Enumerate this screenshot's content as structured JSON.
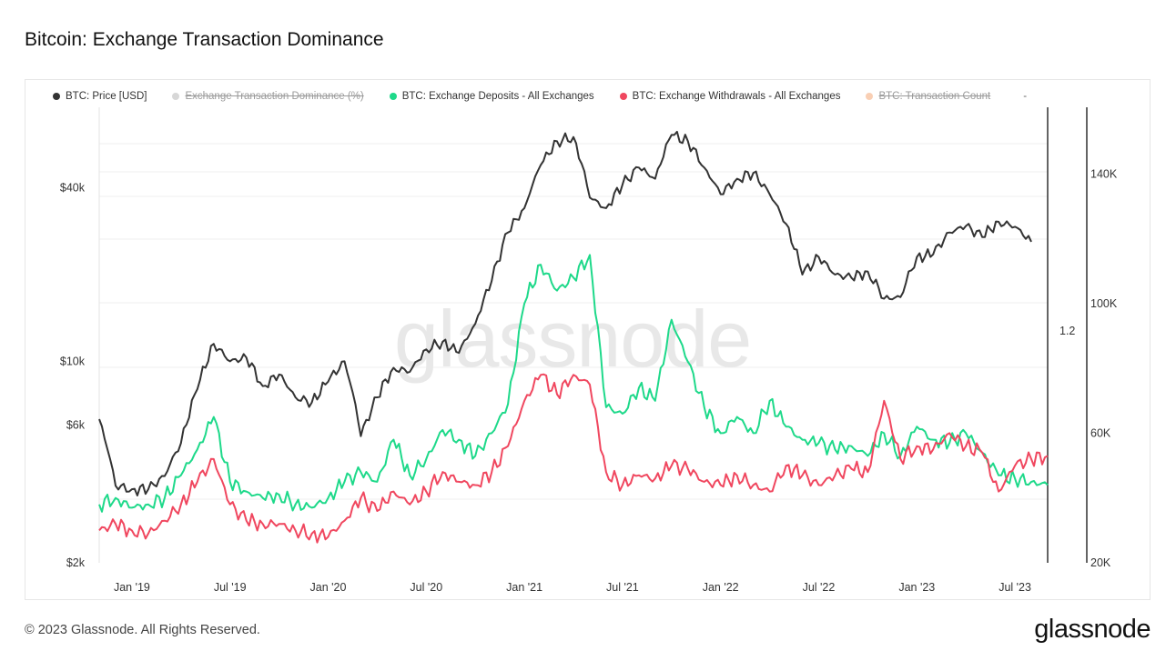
{
  "header": {
    "title": "Bitcoin: Exchange Transaction Dominance"
  },
  "legend": [
    {
      "label": "BTC: Price [USD]",
      "color": "#333333",
      "hidden": false
    },
    {
      "label": "Exchange Transaction Dominance (%)",
      "color": "#b0b0b0",
      "hidden": true
    },
    {
      "label": "BTC: Exchange Deposits - All Exchanges",
      "color": "#1ed98a",
      "hidden": false
    },
    {
      "label": "BTC: Exchange Withdrawals - All Exchanges",
      "color": "#f0475f",
      "hidden": false
    },
    {
      "label": "BTC: Transaction Count",
      "color": "#f4a06a",
      "hidden": true
    }
  ],
  "legend_more": "-",
  "watermark": "glassnode",
  "footer": {
    "copyright": "© 2023 Glassnode. All Rights Reserved.",
    "logo": "glassnode"
  },
  "chart_data": {
    "type": "line",
    "title": "Bitcoin: Exchange Transaction Dominance",
    "x_ticks": [
      "Jan '19",
      "Jul '19",
      "Jan '20",
      "Jul '20",
      "Jan '21",
      "Jul '21",
      "Jan '22",
      "Jul '22",
      "Jan '23",
      "Jul '23"
    ],
    "x_range": [
      "2018-11",
      "2023-09"
    ],
    "y_left": {
      "scale": "log",
      "ticks": [
        "$2k",
        "$6k",
        "$10k",
        "$40k"
      ],
      "range": [
        2000,
        75000
      ]
    },
    "y_right_inner": {
      "ticks": [
        "1.2"
      ]
    },
    "y_right": {
      "ticks": [
        "20K",
        "60K",
        "100K",
        "140K"
      ],
      "range": [
        20000,
        160000
      ]
    },
    "series": [
      {
        "name": "BTC: Price [USD]",
        "axis": "left",
        "color": "#333333",
        "points": [
          [
            "Nov '18",
            6300
          ],
          [
            "Dec '18",
            3700
          ],
          [
            "Jan '19",
            3600
          ],
          [
            "Feb '19",
            3600
          ],
          [
            "Mar '19",
            4000
          ],
          [
            "Apr '19",
            5200
          ],
          [
            "May '19",
            8000
          ],
          [
            "Jun '19",
            11500
          ],
          [
            "Jul '19",
            10000
          ],
          [
            "Aug '19",
            10300
          ],
          [
            "Sep '19",
            8200
          ],
          [
            "Oct '19",
            9000
          ],
          [
            "Nov '19",
            7500
          ],
          [
            "Dec '19",
            7200
          ],
          [
            "Jan '20",
            8500
          ],
          [
            "Feb '20",
            10000
          ],
          [
            "Mar '20",
            5500
          ],
          [
            "Apr '20",
            7500
          ],
          [
            "May '20",
            9500
          ],
          [
            "Jun '20",
            9200
          ],
          [
            "Jul '20",
            11000
          ],
          [
            "Aug '20",
            11700
          ],
          [
            "Sep '20",
            10700
          ],
          [
            "Oct '20",
            13500
          ],
          [
            "Nov '20",
            19000
          ],
          [
            "Dec '20",
            28000
          ],
          [
            "Jan '21",
            34000
          ],
          [
            "Feb '21",
            48000
          ],
          [
            "Mar '21",
            58000
          ],
          [
            "Apr '21",
            60000
          ],
          [
            "May '21",
            37000
          ],
          [
            "Jun '21",
            34000
          ],
          [
            "Jul '21",
            41000
          ],
          [
            "Aug '21",
            47000
          ],
          [
            "Sep '21",
            43000
          ],
          [
            "Oct '21",
            61000
          ],
          [
            "Nov '21",
            58000
          ],
          [
            "Dec '21",
            47000
          ],
          [
            "Jan '22",
            38000
          ],
          [
            "Feb '22",
            43000
          ],
          [
            "Mar '22",
            45000
          ],
          [
            "Apr '22",
            38000
          ],
          [
            "May '22",
            30000
          ],
          [
            "Jun '22",
            20000
          ],
          [
            "Jul '22",
            23000
          ],
          [
            "Aug '22",
            20000
          ],
          [
            "Sep '22",
            19500
          ],
          [
            "Oct '22",
            20500
          ],
          [
            "Nov '22",
            16500
          ],
          [
            "Dec '22",
            16700
          ],
          [
            "Jan '23",
            23000
          ],
          [
            "Feb '23",
            23500
          ],
          [
            "Mar '23",
            28000
          ],
          [
            "Apr '23",
            29500
          ],
          [
            "May '23",
            27000
          ],
          [
            "Jun '23",
            30500
          ],
          [
            "Jul '23",
            29300
          ],
          [
            "Aug '23",
            26000
          ]
        ]
      },
      {
        "name": "BTC: Exchange Deposits - All Exchanges",
        "axis": "right",
        "color": "#1ed98a",
        "points": [
          [
            "Nov '18",
            38000
          ],
          [
            "Dec '18",
            40000
          ],
          [
            "Jan '19",
            37000
          ],
          [
            "Feb '19",
            38000
          ],
          [
            "Mar '19",
            40000
          ],
          [
            "Apr '19",
            47000
          ],
          [
            "May '19",
            55000
          ],
          [
            "Jun '19",
            65000
          ],
          [
            "Jul '19",
            45000
          ],
          [
            "Aug '19",
            42000
          ],
          [
            "Sep '19",
            40000
          ],
          [
            "Oct '19",
            41000
          ],
          [
            "Nov '19",
            38000
          ],
          [
            "Dec '19",
            37000
          ],
          [
            "Jan '20",
            40000
          ],
          [
            "Feb '20",
            45000
          ],
          [
            "Mar '20",
            48000
          ],
          [
            "Apr '20",
            45000
          ],
          [
            "May '20",
            58000
          ],
          [
            "Jun '20",
            47000
          ],
          [
            "Jul '20",
            52000
          ],
          [
            "Aug '20",
            61000
          ],
          [
            "Sep '20",
            58000
          ],
          [
            "Oct '20",
            53000
          ],
          [
            "Nov '20",
            60000
          ],
          [
            "Dec '20",
            69000
          ],
          [
            "Jan '21",
            100000
          ],
          [
            "Feb '21",
            112000
          ],
          [
            "Mar '21",
            104000
          ],
          [
            "Apr '21",
            108000
          ],
          [
            "May '21",
            115000
          ],
          [
            "Jun '21",
            68000
          ],
          [
            "Jul '21",
            66000
          ],
          [
            "Aug '21",
            74000
          ],
          [
            "Sep '21",
            70000
          ],
          [
            "Oct '21",
            95000
          ],
          [
            "Nov '21",
            82000
          ],
          [
            "Dec '21",
            68000
          ],
          [
            "Jan '22",
            60000
          ],
          [
            "Feb '22",
            65000
          ],
          [
            "Mar '22",
            60000
          ],
          [
            "Apr '22",
            70000
          ],
          [
            "May '22",
            62000
          ],
          [
            "Jun '22",
            58000
          ],
          [
            "Jul '22",
            57000
          ],
          [
            "Aug '22",
            55000
          ],
          [
            "Sep '22",
            56000
          ],
          [
            "Oct '22",
            53000
          ],
          [
            "Nov '22",
            60000
          ],
          [
            "Dec '22",
            53000
          ],
          [
            "Jan '23",
            62000
          ],
          [
            "Feb '23",
            58000
          ],
          [
            "Mar '23",
            57000
          ],
          [
            "Apr '23",
            60000
          ],
          [
            "May '23",
            54000
          ],
          [
            "Jun '23",
            47000
          ],
          [
            "Jul '23",
            46000
          ],
          [
            "Aug '23",
            45000
          ],
          [
            "Sep '23",
            44000
          ]
        ]
      },
      {
        "name": "BTC: Exchange Withdrawals - All Exchanges",
        "axis": "right",
        "color": "#f0475f",
        "points": [
          [
            "Nov '18",
            30000
          ],
          [
            "Dec '18",
            32000
          ],
          [
            "Jan '19",
            30000
          ],
          [
            "Feb '19",
            29000
          ],
          [
            "Mar '19",
            33000
          ],
          [
            "Apr '19",
            38000
          ],
          [
            "May '19",
            45000
          ],
          [
            "Jun '19",
            52000
          ],
          [
            "Jul '19",
            38000
          ],
          [
            "Aug '19",
            33000
          ],
          [
            "Sep '19",
            32000
          ],
          [
            "Oct '19",
            32000
          ],
          [
            "Nov '19",
            30000
          ],
          [
            "Dec '19",
            29000
          ],
          [
            "Jan '20",
            28000
          ],
          [
            "Feb '20",
            33000
          ],
          [
            "Mar '20",
            40000
          ],
          [
            "Apr '20",
            36000
          ],
          [
            "May '20",
            42000
          ],
          [
            "Jun '20",
            38000
          ],
          [
            "Jul '20",
            42000
          ],
          [
            "Aug '20",
            48000
          ],
          [
            "Sep '20",
            45000
          ],
          [
            "Oct '20",
            44000
          ],
          [
            "Nov '20",
            48000
          ],
          [
            "Dec '20",
            56000
          ],
          [
            "Jan '21",
            70000
          ],
          [
            "Feb '21",
            78000
          ],
          [
            "Mar '21",
            72000
          ],
          [
            "Apr '21",
            78000
          ],
          [
            "May '21",
            75000
          ],
          [
            "Jun '21",
            48000
          ],
          [
            "Jul '21",
            44000
          ],
          [
            "Aug '21",
            47000
          ],
          [
            "Sep '21",
            46000
          ],
          [
            "Oct '21",
            50000
          ],
          [
            "Nov '21",
            49000
          ],
          [
            "Dec '21",
            45000
          ],
          [
            "Jan '22",
            44000
          ],
          [
            "Feb '22",
            47000
          ],
          [
            "Mar '22",
            44000
          ],
          [
            "Apr '22",
            42000
          ],
          [
            "May '22",
            50000
          ],
          [
            "Jun '22",
            47000
          ],
          [
            "Jul '22",
            44000
          ],
          [
            "Aug '22",
            47000
          ],
          [
            "Sep '22",
            49000
          ],
          [
            "Oct '22",
            48000
          ],
          [
            "Nov '22",
            70000
          ],
          [
            "Dec '22",
            52000
          ],
          [
            "Jan '23",
            56000
          ],
          [
            "Feb '23",
            55000
          ],
          [
            "Mar '23",
            60000
          ],
          [
            "Apr '23",
            56000
          ],
          [
            "May '23",
            54000
          ],
          [
            "Jun '23",
            42000
          ],
          [
            "Jul '23",
            50000
          ],
          [
            "Aug '23",
            52000
          ],
          [
            "Sep '23",
            53000
          ]
        ]
      }
    ]
  }
}
